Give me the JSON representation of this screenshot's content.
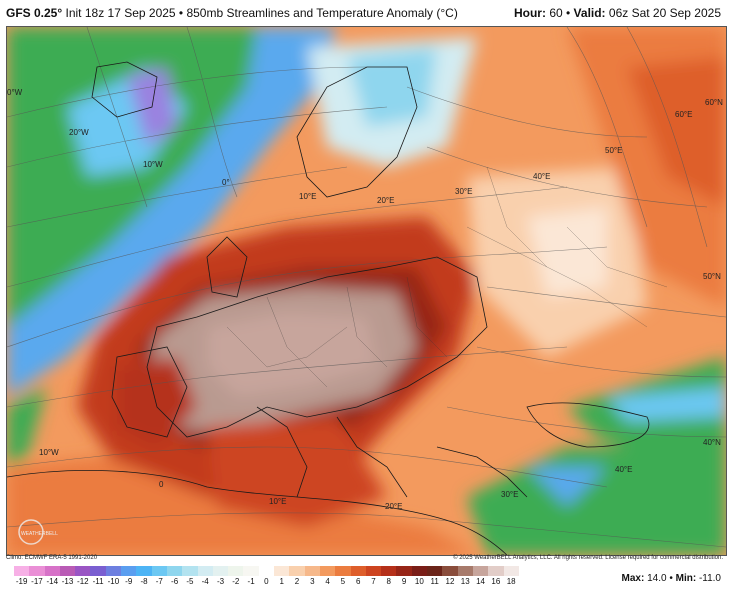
{
  "header": {
    "model": "GFS 0.25°",
    "subtitle": "Init 18z 17 Sep 2025 • 850mb Streamlines and Temperature Anomaly (°C)",
    "hour_label": "Hour:",
    "hour_value": "60",
    "valid_label": "Valid:",
    "valid_value": "06z Sat 20 Sep 2025"
  },
  "map": {
    "lon_labels": [
      "20°W",
      "10°W",
      "0°",
      "10°E",
      "20°E",
      "30°E",
      "40°E",
      "50°E",
      "60°E",
      "10°W",
      "0",
      "10°E",
      "20°E",
      "30°E",
      "40°E"
    ],
    "lat_labels": [
      "60°N",
      "50°N",
      "40°N",
      "0°W"
    ],
    "logo_text": "WEATHERBELL"
  },
  "footer": {
    "climo": "Climo: ECMWF ERA-5 1991-2020",
    "copyright": "© 2025 WeatherBELL Analytics, LLC. All rights reserved. License required for commercial distribution.",
    "max_label": "Max:",
    "max_value": "14.0",
    "min_label": "Min:",
    "min_value": "-11.0"
  },
  "legend": {
    "ticks": [
      "-19",
      "-17",
      "-14",
      "-13",
      "-12",
      "-11",
      "-10",
      "-9",
      "-8",
      "-7",
      "-6",
      "-5",
      "-4",
      "-3",
      "-2",
      "-1",
      "0",
      "1",
      "2",
      "3",
      "4",
      "5",
      "6",
      "7",
      "8",
      "9",
      "10",
      "11",
      "12",
      "13",
      "14",
      "16",
      "18"
    ],
    "colors": [
      "#f7b0e6",
      "#ea8fd6",
      "#d772c8",
      "#b95bb5",
      "#9a55c4",
      "#7a5fd1",
      "#6d7fe0",
      "#5a9ef0",
      "#4db4f5",
      "#6cc8f3",
      "#8fd6ee",
      "#b3e3f0",
      "#d3ecf2",
      "#e3f1f0",
      "#eef5ec",
      "#f7f7f2",
      "#ffffff",
      "#fbe7d6",
      "#f9d0ad",
      "#f6b88a",
      "#f39a5e",
      "#eb7c3f",
      "#de5e2b",
      "#cd4420",
      "#b5301a",
      "#972517",
      "#7a1e18",
      "#6b2419",
      "#8a4d3c",
      "#a77a6b",
      "#c7a59c",
      "#e2cdc8",
      "#f2e8e5"
    ]
  },
  "colors": {
    "ocean_green": "#3dac52",
    "anomaly_orange": "#f39a5e",
    "anomaly_red": "#c23a1e",
    "anomaly_brown": "#b99a90",
    "cool_blue": "#5aa9ee"
  }
}
